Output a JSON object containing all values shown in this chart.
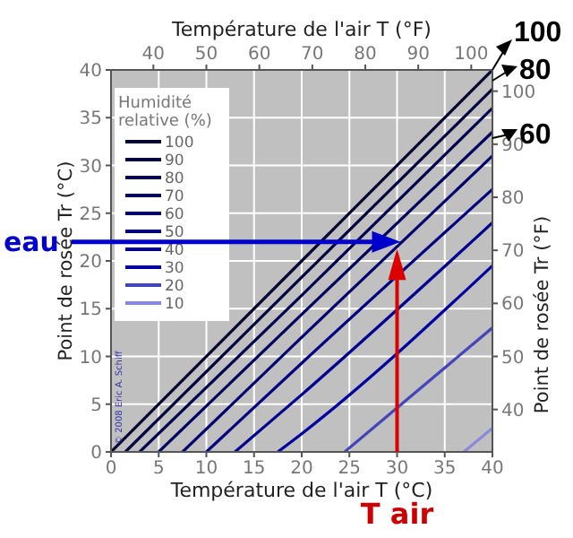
{
  "chart_data": {
    "type": "line",
    "xlabel": "Température de l'air T (°C)",
    "ylabel": "Point de rosée Tr (°C)",
    "x2label": "Température de l'air T (°F)",
    "y2label": "Point de rosée Tr (°F)",
    "legend_title": "Humidité relative (%)",
    "legend": "top left",
    "grid": true,
    "line_style": "solid",
    "ref_lines": [
      {
        "axis": "y",
        "value": 22,
        "color": "#0000cc"
      },
      {
        "axis": "x",
        "value": 30,
        "color": "#dd0000"
      }
    ],
    "xlim": [
      0,
      40
    ],
    "ylim": [
      0,
      40
    ],
    "xticks": [
      0,
      5,
      10,
      15,
      20,
      25,
      30,
      35,
      40
    ],
    "yticks": [
      0,
      5,
      10,
      15,
      20,
      25,
      30,
      35,
      40
    ],
    "x2lim": [
      32,
      104
    ],
    "x2ticks": [
      40,
      50,
      60,
      70,
      80,
      90,
      100
    ],
    "y2lim": [
      32,
      104
    ],
    "y2ticks": [
      40,
      50,
      60,
      70,
      80,
      90,
      100
    ],
    "series": [
      {
        "name": "100",
        "color": "#000033",
        "x": [
          0,
          20,
          40
        ],
        "values": [
          0,
          20,
          40
        ]
      },
      {
        "name": "90",
        "color": "#000040",
        "x": [
          1.5,
          20,
          40
        ],
        "values": [
          0,
          18.3,
          38
        ]
      },
      {
        "name": "80",
        "color": "#000050",
        "x": [
          3,
          20,
          40
        ],
        "values": [
          0,
          16.4,
          36
        ]
      },
      {
        "name": "70",
        "color": "#000060",
        "x": [
          5,
          20,
          40
        ],
        "values": [
          0,
          14.4,
          33.5
        ]
      },
      {
        "name": "60",
        "color": "#000070",
        "x": [
          7.5,
          20,
          40
        ],
        "values": [
          0,
          12,
          31
        ]
      },
      {
        "name": "50",
        "color": "#000080",
        "x": [
          10,
          20,
          40
        ],
        "values": [
          0,
          9.3,
          27.5
        ]
      },
      {
        "name": "40",
        "color": "#000090",
        "x": [
          13,
          20,
          40
        ],
        "values": [
          0,
          6,
          24
        ]
      },
      {
        "name": "30",
        "color": "#0000a0",
        "x": [
          17.5,
          20,
          40
        ],
        "values": [
          0,
          1.9,
          19.5
        ]
      },
      {
        "name": "20",
        "color": "#4444bb",
        "x": [
          24.5,
          40
        ],
        "values": [
          0,
          13
        ]
      },
      {
        "name": "10",
        "color": "#8888dd",
        "x": [
          37,
          40
        ],
        "values": [
          0,
          2.5
        ]
      }
    ],
    "annotations": [
      "100",
      "80",
      "60",
      "eau",
      "T air",
      "© 2008 Eric A. Schiff"
    ]
  }
}
